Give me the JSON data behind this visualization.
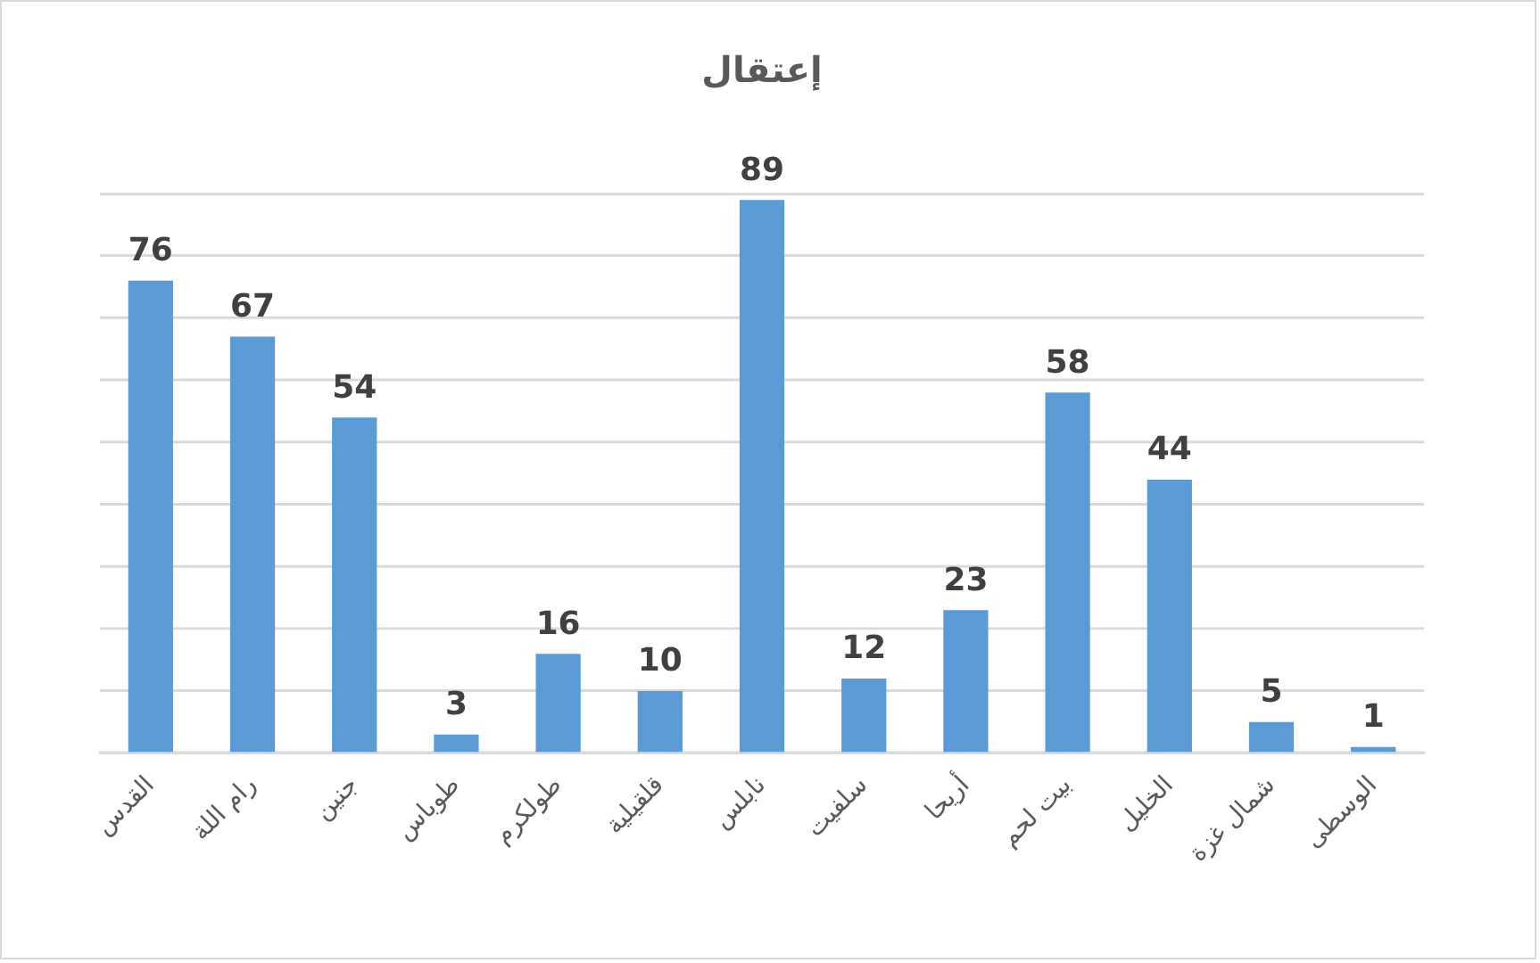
{
  "chart_data": {
    "type": "bar",
    "title": "إعتقال",
    "categories": [
      "القدس",
      "رام اللة",
      "جنين",
      "طوباس",
      "طولكرم",
      "قلقيلية",
      "نابلس",
      "سلفيت",
      "أريحا",
      "بيت لحم",
      "الخليل",
      "شمال غزة",
      "الوسطى"
    ],
    "values": [
      76,
      67,
      54,
      3,
      16,
      10,
      89,
      12,
      23,
      58,
      44,
      5,
      1
    ],
    "color": "#5b9bd5",
    "ylim": [
      0,
      90
    ],
    "yticks": [
      {
        "value": 0,
        "label": null
      },
      {
        "value": 10,
        "label": null
      },
      {
        "value": 20,
        "label": null
      },
      {
        "value": 30,
        "label": null
      },
      {
        "value": 40,
        "label": null
      },
      {
        "value": 50,
        "label": null
      },
      {
        "value": 60,
        "label": null
      },
      {
        "value": 70,
        "label": null
      },
      {
        "value": 80,
        "label": null
      },
      {
        "value": 90,
        "label": null
      }
    ],
    "tick_labels": "x",
    "grid": "y",
    "data_labels": true
  }
}
